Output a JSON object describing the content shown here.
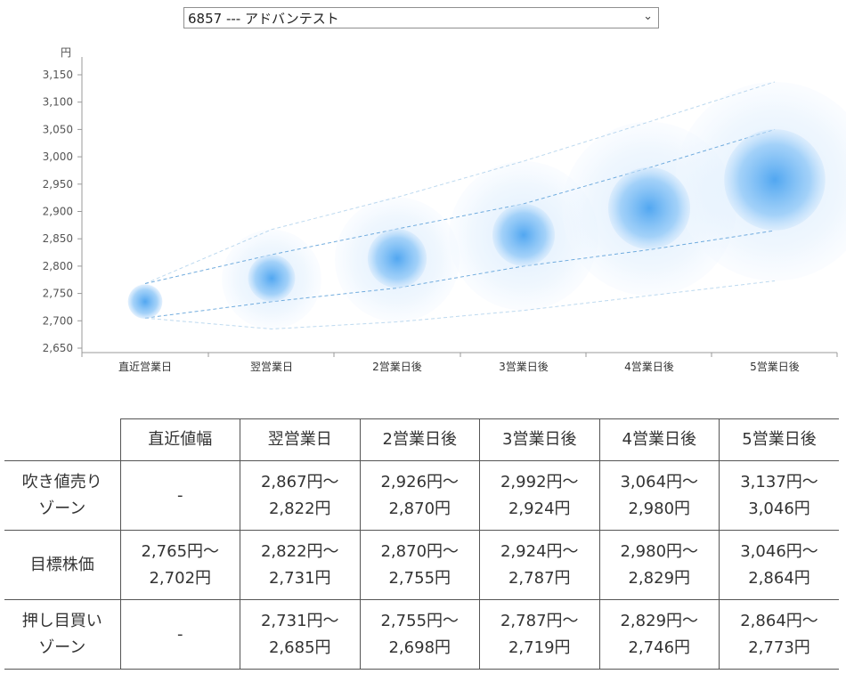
{
  "selector": {
    "value": "6857 --- アドバンテスト"
  },
  "chart_data": {
    "type": "bubble",
    "y_unit": "円",
    "ylim": [
      2650,
      3150
    ],
    "yticks": [
      2650,
      2700,
      2750,
      2800,
      2850,
      2900,
      2950,
      3000,
      3050,
      3100,
      3150
    ],
    "categories": [
      "直近営業日",
      "翌営業日",
      "2営業日後",
      "3営業日後",
      "4営業日後",
      "5営業日後"
    ],
    "center": [
      2735,
      2778,
      2814,
      2857,
      2906,
      2958
    ],
    "inner_range": [
      [
        2705,
        2768
      ],
      [
        2735,
        2821
      ],
      [
        2760,
        2868
      ],
      [
        2800,
        2914
      ],
      [
        2830,
        2980
      ],
      [
        2865,
        3050
      ]
    ],
    "outer_range": [
      [
        2705,
        2768
      ],
      [
        2685,
        2867
      ],
      [
        2698,
        2926
      ],
      [
        2719,
        2992
      ],
      [
        2746,
        3064
      ],
      [
        2773,
        3137
      ]
    ],
    "colors": {
      "bubble": "#4aa3f0",
      "guide": "#5b9fd8",
      "axis": "#999999"
    }
  },
  "table": {
    "corner": "",
    "headers": [
      "直近値幅",
      "翌営業日",
      "2営業日後",
      "3営業日後",
      "4営業日後",
      "5営業日後"
    ],
    "rows": [
      {
        "label": [
          "吹き値売り",
          "ゾーン"
        ],
        "cells": [
          [
            "-"
          ],
          [
            "2,867円～",
            "2,822円"
          ],
          [
            "2,926円～",
            "2,870円"
          ],
          [
            "2,992円～",
            "2,924円"
          ],
          [
            "3,064円～",
            "2,980円"
          ],
          [
            "3,137円～",
            "3,046円"
          ]
        ]
      },
      {
        "label": [
          "目標株価"
        ],
        "cells": [
          [
            "2,765円～",
            "2,702円"
          ],
          [
            "2,822円～",
            "2,731円"
          ],
          [
            "2,870円～",
            "2,755円"
          ],
          [
            "2,924円～",
            "2,787円"
          ],
          [
            "2,980円～",
            "2,829円"
          ],
          [
            "3,046円～",
            "2,864円"
          ]
        ]
      },
      {
        "label": [
          "押し目買い",
          "ゾーン"
        ],
        "cells": [
          [
            "-"
          ],
          [
            "2,731円～",
            "2,685円"
          ],
          [
            "2,755円～",
            "2,698円"
          ],
          [
            "2,787円～",
            "2,719円"
          ],
          [
            "2,829円～",
            "2,746円"
          ],
          [
            "2,864円～",
            "2,773円"
          ]
        ]
      }
    ]
  }
}
